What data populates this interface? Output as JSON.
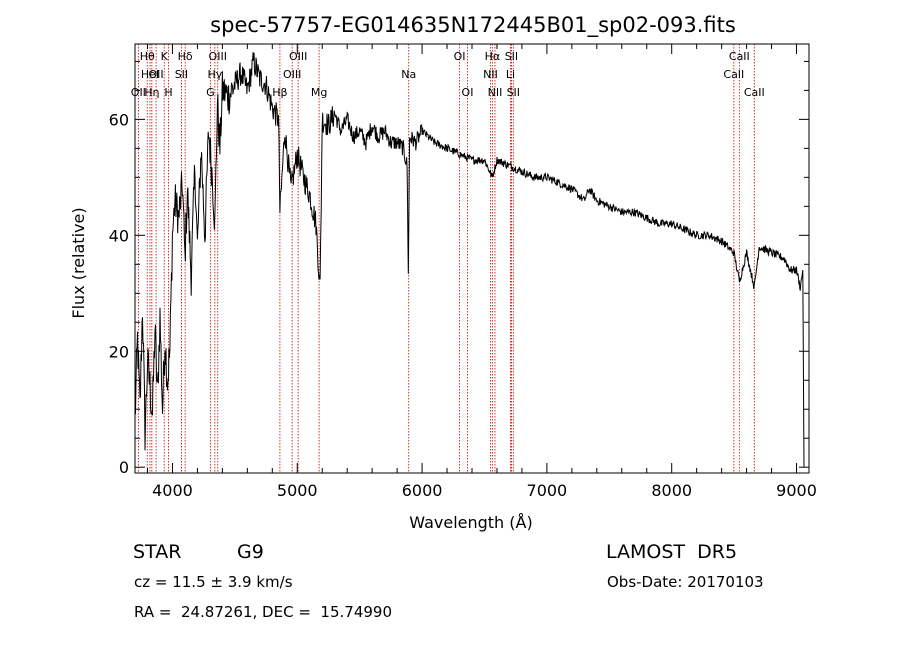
{
  "chart_data": {
    "type": "line",
    "title": "spec-57757-EG014635N172445B01_sp02-093.fits",
    "xlabel": "Wavelength (Å)",
    "ylabel": "Flux (relative)",
    "xlim": [
      3700,
      9100
    ],
    "ylim": [
      -1,
      73
    ],
    "xticks": [
      4000,
      5000,
      6000,
      7000,
      8000,
      9000
    ],
    "yticks": [
      0,
      20,
      40,
      60
    ],
    "grid": false,
    "series": [
      {
        "x": [
          3700,
          3720,
          3740,
          3760,
          3780,
          3800,
          3820,
          3840,
          3860,
          3880,
          3900,
          3920,
          3940,
          3960,
          3980,
          4000,
          4020,
          4050,
          4080,
          4100,
          4120,
          4150,
          4180,
          4200,
          4230,
          4260,
          4290,
          4320,
          4340,
          4360,
          4380,
          4400,
          4450,
          4500,
          4550,
          4600,
          4650,
          4700,
          4750,
          4800,
          4850,
          4861,
          4900,
          4950,
          5000,
          5050,
          5100,
          5150,
          5170,
          5183,
          5200,
          5250,
          5300,
          5350,
          5400,
          5450,
          5500,
          5550,
          5600,
          5650,
          5700,
          5750,
          5800,
          5850,
          5880,
          5890,
          5900,
          5950,
          6000,
          6100,
          6200,
          6300,
          6400,
          6500,
          6563,
          6600,
          6700,
          6800,
          6900,
          7000,
          7100,
          7200,
          7300,
          7340,
          7400,
          7500,
          7600,
          7700,
          7800,
          7900,
          8000,
          8100,
          8200,
          8300,
          8400,
          8498,
          8542,
          8600,
          8662,
          8700,
          8800,
          8900,
          8950,
          9000,
          9030,
          9050,
          9060
        ],
        "y": [
          8,
          22,
          10,
          28,
          6,
          18,
          14,
          9,
          24,
          12,
          26,
          10,
          22,
          15,
          20,
          40,
          46,
          43,
          49,
          36,
          48,
          33,
          52,
          38,
          55,
          40,
          58,
          50,
          42,
          63,
          55,
          65,
          64,
          66,
          68,
          65,
          70,
          67,
          66,
          62,
          60,
          44,
          58,
          48,
          54,
          50,
          47,
          42,
          35,
          31,
          60,
          59,
          61,
          58,
          60,
          57,
          58,
          56,
          59,
          57,
          58,
          56,
          56,
          55,
          52,
          34,
          57,
          56,
          58,
          56,
          55,
          54,
          53,
          53,
          50,
          53,
          52,
          51,
          50,
          50,
          49,
          48,
          46,
          48,
          46,
          45,
          44,
          44,
          43,
          42,
          42,
          41,
          40,
          40,
          39,
          37,
          32,
          37,
          31,
          38,
          37,
          36,
          34,
          34,
          31,
          34,
          0
        ]
      }
    ],
    "lines": [
      {
        "wl": 3727,
        "label": "OII",
        "row": 2
      },
      {
        "wl": 3798,
        "label": "Hθ",
        "row": 0
      },
      {
        "wl": 3820,
        "label": "HeI",
        "row": 1
      },
      {
        "wl": 3835,
        "label": "Hη",
        "row": 2
      },
      {
        "wl": 3869,
        "label": "OII",
        "row": 1
      },
      {
        "wl": 3934,
        "label": "K",
        "row": 0
      },
      {
        "wl": 3969,
        "label": "H",
        "row": 2
      },
      {
        "wl": 4072,
        "label": "SII",
        "row": 1
      },
      {
        "wl": 4102,
        "label": "Hδ",
        "row": 0
      },
      {
        "wl": 4304,
        "label": "G",
        "row": 2
      },
      {
        "wl": 4340,
        "label": "Hγ",
        "row": 1
      },
      {
        "wl": 4363,
        "label": "OIII",
        "row": 0
      },
      {
        "wl": 4861,
        "label": "Hβ",
        "row": 2
      },
      {
        "wl": 4959,
        "label": "OIII",
        "row": 1
      },
      {
        "wl": 5007,
        "label": "OIII",
        "row": 0
      },
      {
        "wl": 5175,
        "label": "Mg",
        "row": 2
      },
      {
        "wl": 5893,
        "label": "Na",
        "row": 1
      },
      {
        "wl": 6300,
        "label": "OI",
        "row": 0
      },
      {
        "wl": 6364,
        "label": "OI",
        "row": 2
      },
      {
        "wl": 6548,
        "label": "NII",
        "row": 1
      },
      {
        "wl": 6563,
        "label": "Hα",
        "row": 0
      },
      {
        "wl": 6584,
        "label": "NII",
        "row": 2
      },
      {
        "wl": 6708,
        "label": "Li",
        "row": 1
      },
      {
        "wl": 6716,
        "label": "SII",
        "row": 0
      },
      {
        "wl": 6731,
        "label": "SII",
        "row": 2
      },
      {
        "wl": 8498,
        "label": "CaII",
        "row": 1
      },
      {
        "wl": 8542,
        "label": "CaII",
        "row": 0
      },
      {
        "wl": 8662,
        "label": "CaII",
        "row": 2
      }
    ],
    "line_color": "#cc0000"
  },
  "footer": {
    "class_label": "STAR",
    "subclass": "G9",
    "cz": "cz = 11.5 ± 3.9 km/s",
    "coords": "RA =  24.87261, DEC =  15.74990",
    "survey": "LAMOST  DR5",
    "obs_date": "Obs-Date: 20170103"
  }
}
